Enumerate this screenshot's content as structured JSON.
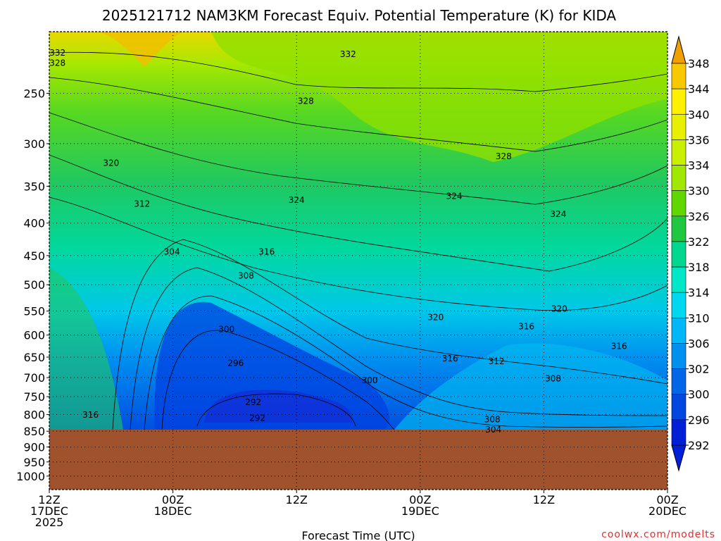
{
  "chart_data": {
    "type": "heatmap",
    "title": "2025121712 NAM3KM Forecast Equiv. Potential Temperature (K) for KIDA",
    "xlabel": "Forecast Time (UTC)",
    "ylabel": "",
    "watermark": "coolwx.com/modelts",
    "x_range_hours": [
      0,
      60
    ],
    "x_ticks": [
      {
        "hour": 0,
        "lines": [
          "12Z",
          "17DEC",
          "2025"
        ]
      },
      {
        "hour": 12,
        "lines": [
          "00Z",
          "18DEC"
        ]
      },
      {
        "hour": 24,
        "lines": [
          "12Z"
        ]
      },
      {
        "hour": 36,
        "lines": [
          "00Z",
          "19DEC"
        ]
      },
      {
        "hour": 48,
        "lines": [
          "12Z"
        ]
      },
      {
        "hour": 60,
        "lines": [
          "00Z",
          "20DEC"
        ]
      }
    ],
    "y_scale": "log",
    "y_range_hpa": [
      200,
      1050
    ],
    "y_ticks": [
      "250",
      "300",
      "350",
      "400",
      "450",
      "500",
      "550",
      "600",
      "650",
      "700",
      "750",
      "800",
      "850",
      "900",
      "950",
      "1000"
    ],
    "grid": "dotted",
    "ground_level_hpa": 845,
    "ground_color": "#a0522d",
    "colorbar": {
      "labels": [
        "348",
        "344",
        "340",
        "336",
        "334",
        "330",
        "326",
        "322",
        "318",
        "314",
        "310",
        "306",
        "302",
        "300",
        "296",
        "292"
      ],
      "colors": [
        "#f0a000",
        "#f8c800",
        "#fff000",
        "#e8f000",
        "#c8f000",
        "#a0e800",
        "#60d800",
        "#20c840",
        "#00d890",
        "#00e8c8",
        "#00d8f0",
        "#00b8f8",
        "#0090f0",
        "#0068e8",
        "#0048e0",
        "#0020d8"
      ]
    },
    "contour_labels": [
      {
        "text": "332",
        "hour": 0.8,
        "hpa": 216
      },
      {
        "text": "328",
        "hour": 0.8,
        "hpa": 224
      },
      {
        "text": "332",
        "hour": 29.0,
        "hpa": 217
      },
      {
        "text": "328",
        "hour": 24.9,
        "hpa": 257
      },
      {
        "text": "328",
        "hour": 44.1,
        "hpa": 314
      },
      {
        "text": "320",
        "hour": 6.0,
        "hpa": 322
      },
      {
        "text": "324",
        "hour": 24.0,
        "hpa": 368
      },
      {
        "text": "324",
        "hour": 39.3,
        "hpa": 363
      },
      {
        "text": "324",
        "hour": 49.4,
        "hpa": 387
      },
      {
        "text": "312",
        "hour": 9.0,
        "hpa": 373
      },
      {
        "text": "304",
        "hour": 11.9,
        "hpa": 444
      },
      {
        "text": "316",
        "hour": 21.1,
        "hpa": 444
      },
      {
        "text": "308",
        "hour": 19.1,
        "hpa": 484
      },
      {
        "text": "320",
        "hour": 37.5,
        "hpa": 563
      },
      {
        "text": "320",
        "hour": 49.5,
        "hpa": 546
      },
      {
        "text": "316",
        "hour": 46.3,
        "hpa": 582
      },
      {
        "text": "300",
        "hour": 17.2,
        "hpa": 588
      },
      {
        "text": "316",
        "hour": 38.9,
        "hpa": 653
      },
      {
        "text": "312",
        "hour": 43.4,
        "hpa": 660
      },
      {
        "text": "316",
        "hour": 55.3,
        "hpa": 625
      },
      {
        "text": "296",
        "hour": 18.1,
        "hpa": 664
      },
      {
        "text": "300",
        "hour": 31.1,
        "hpa": 707
      },
      {
        "text": "308",
        "hour": 48.9,
        "hpa": 703
      },
      {
        "text": "292",
        "hour": 19.8,
        "hpa": 765
      },
      {
        "text": "292",
        "hour": 20.2,
        "hpa": 810
      },
      {
        "text": "316",
        "hour": 4.0,
        "hpa": 801
      },
      {
        "text": "308",
        "hour": 43.0,
        "hpa": 815
      },
      {
        "text": "304",
        "hour": 43.1,
        "hpa": 845
      }
    ]
  }
}
